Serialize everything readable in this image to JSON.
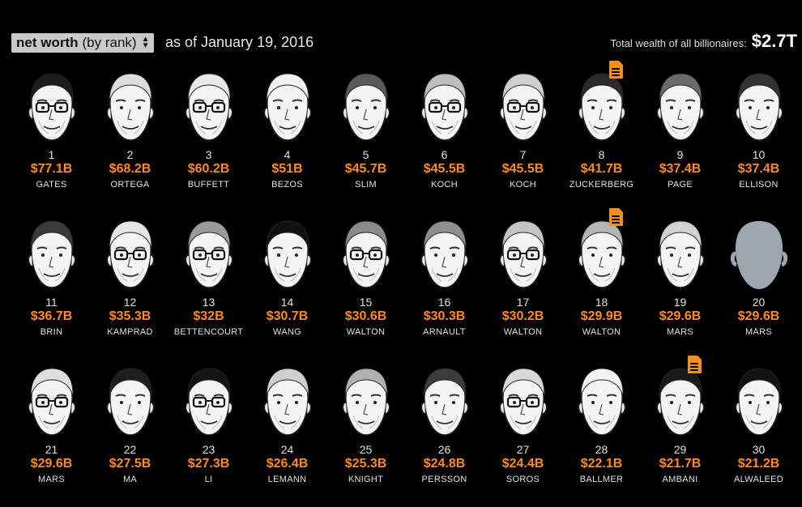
{
  "header": {
    "sort_bold": "net worth",
    "sort_rest": "(by rank)",
    "as_of": "as of January 19, 2016",
    "total_label": "Total wealth of all billionaires:",
    "total_value": "$2.7T"
  },
  "colors": {
    "accent": "#ff8a1d",
    "icon": "#f5901e"
  },
  "billionaires": [
    {
      "rank": "1",
      "worth": "$77.1B",
      "name": "GATES",
      "glasses": true,
      "hair": "#1c1c1c"
    },
    {
      "rank": "2",
      "worth": "$68.2B",
      "name": "ORTEGA",
      "glasses": false,
      "hair": "#dcdcdc"
    },
    {
      "rank": "3",
      "worth": "$60.2B",
      "name": "BUFFETT",
      "glasses": true,
      "hair": "#e8e8e8"
    },
    {
      "rank": "4",
      "worth": "$51B",
      "name": "BEZOS",
      "glasses": false,
      "hair": "#f2f2f2"
    },
    {
      "rank": "5",
      "worth": "$45.7B",
      "name": "SLIM",
      "glasses": false,
      "hair": "#5a5a5a"
    },
    {
      "rank": "6",
      "worth": "$45.5B",
      "name": "KOCH",
      "glasses": true,
      "hair": "#bdbdbd"
    },
    {
      "rank": "7",
      "worth": "$45.5B",
      "name": "KOCH",
      "glasses": true,
      "hair": "#cfcfcf"
    },
    {
      "rank": "8",
      "worth": "$41.7B",
      "name": "ZUCKERBERG",
      "glasses": false,
      "hair": "#2a2a2a",
      "doc": true
    },
    {
      "rank": "9",
      "worth": "$37.4B",
      "name": "PAGE",
      "glasses": false,
      "hair": "#6b6b6b"
    },
    {
      "rank": "10",
      "worth": "$37.4B",
      "name": "ELLISON",
      "glasses": false,
      "hair": "#333333"
    },
    {
      "rank": "11",
      "worth": "$36.7B",
      "name": "BRIN",
      "glasses": false,
      "hair": "#3a3a3a"
    },
    {
      "rank": "12",
      "worth": "$35.3B",
      "name": "KAMPRAD",
      "glasses": true,
      "hair": "#e5e5e5"
    },
    {
      "rank": "13",
      "worth": "$32B",
      "name": "BETTENCOURT",
      "glasses": true,
      "hair": "#9a9a9a"
    },
    {
      "rank": "14",
      "worth": "$30.7B",
      "name": "WANG",
      "glasses": false,
      "hair": "#111111"
    },
    {
      "rank": "15",
      "worth": "$30.6B",
      "name": "WALTON",
      "glasses": true,
      "hair": "#8a8a8a"
    },
    {
      "rank": "16",
      "worth": "$30.3B",
      "name": "ARNAULT",
      "glasses": false,
      "hair": "#8f8f8f"
    },
    {
      "rank": "17",
      "worth": "$30.2B",
      "name": "WALTON",
      "glasses": true,
      "hair": "#c4c4c4"
    },
    {
      "rank": "18",
      "worth": "$29.9B",
      "name": "WALTON",
      "glasses": false,
      "hair": "#b5b5b5",
      "doc": true
    },
    {
      "rank": "19",
      "worth": "$29.6B",
      "name": "MARS",
      "glasses": false,
      "hair": "#d2d2d2"
    },
    {
      "rank": "20",
      "worth": "$29.6B",
      "name": "MARS",
      "placeholder": true
    },
    {
      "rank": "21",
      "worth": "$29.6B",
      "name": "MARS",
      "glasses": true,
      "hair": "#dedede"
    },
    {
      "rank": "22",
      "worth": "$27.5B",
      "name": "MA",
      "glasses": false,
      "hair": "#1e1e1e"
    },
    {
      "rank": "23",
      "worth": "$27.3B",
      "name": "LI",
      "glasses": true,
      "hair": "#151515"
    },
    {
      "rank": "24",
      "worth": "$26.4B",
      "name": "LEMANN",
      "glasses": false,
      "hair": "#cfcfcf"
    },
    {
      "rank": "25",
      "worth": "$25.3B",
      "name": "KNIGHT",
      "glasses": false,
      "hair": "#b0b0b0"
    },
    {
      "rank": "26",
      "worth": "$24.8B",
      "name": "PERSSON",
      "glasses": false,
      "hair": "#3c3c3c"
    },
    {
      "rank": "27",
      "worth": "$24.4B",
      "name": "SOROS",
      "glasses": true,
      "hair": "#d9d9d9"
    },
    {
      "rank": "28",
      "worth": "$22.1B",
      "name": "BALLMER",
      "glasses": false,
      "hair": "#f4f4f4"
    },
    {
      "rank": "29",
      "worth": "$21.7B",
      "name": "AMBANI",
      "glasses": false,
      "hair": "#1a1a1a",
      "doc": true
    },
    {
      "rank": "30",
      "worth": "$21.2B",
      "name": "ALWALEED",
      "glasses": false,
      "hair": "#121212"
    }
  ]
}
